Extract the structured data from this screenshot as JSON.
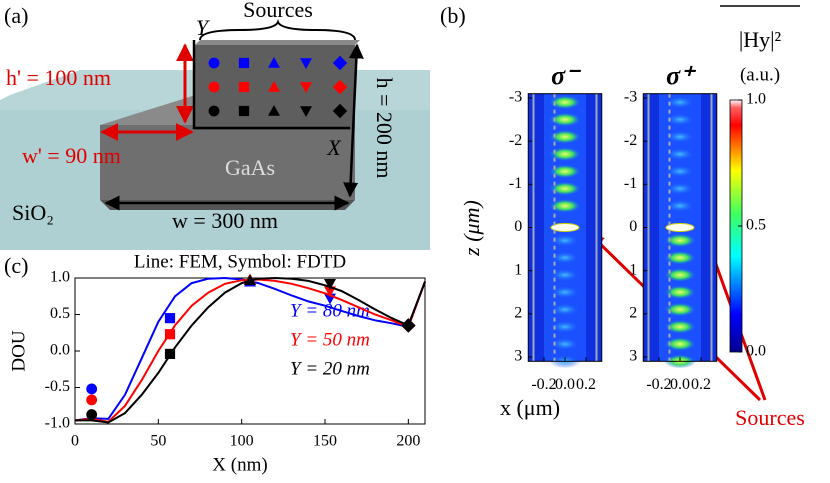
{
  "panel_a": {
    "label": "(a)",
    "sources": "Sources",
    "y_axis": "Y",
    "x_axis": "X",
    "h_prime": "h' = 100 nm",
    "w_prime": "w' = 90 nm",
    "h": "h = 200 nm",
    "w": "w = 300 nm",
    "material": "GaAs",
    "substrate": "SiO₂"
  },
  "panel_b": {
    "label": "(b)",
    "maps": [
      {
        "title": "σ⁻"
      },
      {
        "title": "σ⁺"
      }
    ],
    "zlabel": "z (μm)",
    "xlabel": "x (μm)",
    "zlim": [
      -3.1,
      3.1
    ],
    "zticks": [
      -3,
      -2,
      -1,
      0,
      1,
      2,
      3
    ],
    "xlim": [
      -0.35,
      0.35
    ],
    "xticks": [
      -0.2,
      {
        "value": 0,
        "label": "0.0"
      },
      0.2
    ],
    "colorbar": {
      "label": "|Hy|²",
      "unit": "(a.u.)",
      "lim": [
        0,
        1
      ],
      "ticks": [
        {
          "value": 0,
          "label": "0.0"
        },
        0.5,
        {
          "value": 1,
          "label": "1.0"
        }
      ]
    },
    "annotation": "Sources"
  },
  "chart_data": {
    "type": "line",
    "panel_label": "(c)",
    "title": "Line: FEM, Symbol: FDTD",
    "x_label": "X (nm)",
    "y_label": "DOU",
    "xlim": [
      0,
      210
    ],
    "ylim": [
      -1,
      1
    ],
    "xticks": [
      0,
      50,
      100,
      150,
      200
    ],
    "yticks": [
      {
        "value": -1,
        "label": "-1.0"
      },
      {
        "value": -0.5,
        "label": "-0.5"
      },
      {
        "value": 0,
        "label": "0.0"
      },
      {
        "value": 0.5,
        "label": "0.5"
      },
      {
        "value": 1,
        "label": "1.0"
      }
    ],
    "symbols": [
      "circle",
      "square",
      "triangle-up",
      "triangle-down",
      "diamond"
    ],
    "series": [
      {
        "name": "Y = 80 nm",
        "color": "#0000ff",
        "x": [
          0,
          10,
          20,
          30,
          40,
          50,
          60,
          70,
          80,
          90,
          100,
          110,
          120,
          130,
          140,
          150,
          160,
          170,
          180,
          190,
          200,
          210
        ],
        "values": [
          -0.95,
          -0.92,
          -0.93,
          -0.6,
          -0.1,
          0.4,
          0.75,
          0.93,
          0.99,
          1.0,
          0.98,
          0.93,
          0.85,
          0.76,
          0.68,
          0.62,
          0.55,
          0.48,
          0.42,
          0.38,
          0.33,
          0.95
        ],
        "symbol_x": [
          10,
          57,
          105,
          153,
          200
        ],
        "symbol_values": [
          -0.52,
          0.45,
          0.95,
          0.72,
          0.35
        ]
      },
      {
        "name": "Y = 50 nm",
        "color": "#ff0000",
        "x": [
          0,
          10,
          20,
          30,
          40,
          50,
          60,
          70,
          80,
          90,
          100,
          110,
          120,
          130,
          140,
          150,
          160,
          170,
          180,
          190,
          200,
          210
        ],
        "values": [
          -0.95,
          -0.93,
          -0.97,
          -0.75,
          -0.4,
          0.0,
          0.35,
          0.62,
          0.8,
          0.92,
          0.97,
          0.98,
          0.96,
          0.92,
          0.86,
          0.79,
          0.7,
          0.6,
          0.5,
          0.42,
          0.33,
          0.95
        ],
        "symbol_x": [
          10,
          57,
          105,
          153,
          200
        ],
        "symbol_values": [
          -0.67,
          0.23,
          0.98,
          0.82,
          0.35
        ]
      },
      {
        "name": "Y = 20 nm",
        "color": "#000000",
        "x": [
          0,
          10,
          20,
          30,
          40,
          50,
          60,
          70,
          80,
          90,
          100,
          110,
          120,
          130,
          140,
          150,
          160,
          170,
          180,
          190,
          200,
          210
        ],
        "values": [
          -0.95,
          -0.95,
          -0.98,
          -0.85,
          -0.6,
          -0.3,
          0.05,
          0.35,
          0.6,
          0.8,
          0.93,
          0.99,
          1.0,
          0.99,
          0.96,
          0.9,
          0.82,
          0.7,
          0.57,
          0.45,
          0.35,
          0.95
        ],
        "symbol_x": [
          10,
          57,
          105,
          153,
          200
        ],
        "symbol_values": [
          -0.87,
          -0.04,
          0.97,
          0.92,
          0.35
        ]
      }
    ]
  }
}
